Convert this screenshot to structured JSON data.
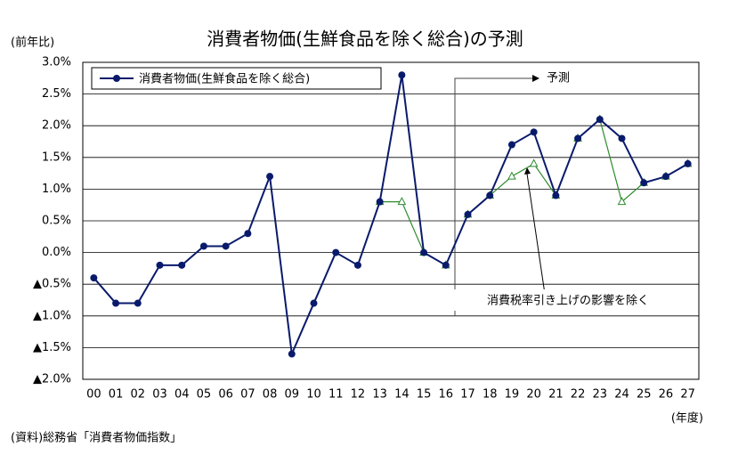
{
  "chart_data": {
    "type": "line",
    "title": "消費者物価(生鮮食品を除く総合)の予測",
    "y_unit": "(前年比)",
    "x_unit": "(年度)",
    "source": "(資料)総務省「消費者物価指数」",
    "annotations": [
      "予測",
      "消費税率引き上げの影響を除く"
    ],
    "categories": [
      "00",
      "01",
      "02",
      "03",
      "04",
      "05",
      "06",
      "07",
      "08",
      "09",
      "10",
      "11",
      "12",
      "13",
      "14",
      "15",
      "16",
      "17",
      "18",
      "19",
      "20",
      "21",
      "22",
      "23",
      "24",
      "25",
      "26",
      "27"
    ],
    "series": [
      {
        "name": "消費者物価(生鮮食品を除く総合)",
        "color": "#0a1a6b",
        "values": [
          -0.4,
          -0.8,
          -0.8,
          -0.2,
          -0.2,
          0.1,
          0.1,
          0.3,
          1.2,
          -1.6,
          -0.8,
          0.0,
          -0.2,
          0.8,
          2.8,
          0.0,
          -0.2,
          0.6,
          0.9,
          1.7,
          1.9,
          0.9,
          1.8,
          2.1,
          1.8,
          1.1,
          1.2,
          1.4
        ]
      },
      {
        "color": "#2e8b2e",
        "values": [
          null,
          null,
          null,
          null,
          null,
          null,
          null,
          null,
          null,
          null,
          null,
          null,
          null,
          0.8,
          0.8,
          0.0,
          -0.2,
          0.6,
          0.9,
          1.2,
          1.4,
          0.9,
          1.8,
          2.1,
          0.8,
          1.1,
          1.2,
          1.4
        ]
      }
    ],
    "ylim": [
      -2.0,
      3.0
    ],
    "yticks": [
      {
        "value": 3.0,
        "label": "3.0%"
      },
      {
        "value": 2.5,
        "label": "2.5%"
      },
      {
        "value": 2.0,
        "label": "2.0%"
      },
      {
        "value": 1.5,
        "label": "1.5%"
      },
      {
        "value": 1.0,
        "label": "1.0%"
      },
      {
        "value": 0.5,
        "label": "0.5%"
      },
      {
        "value": 0.0,
        "label": "0.0%"
      },
      {
        "value": -0.5,
        "label": "▲0.5%"
      },
      {
        "value": -1.0,
        "label": "▲1.0%"
      },
      {
        "value": -1.5,
        "label": "▲1.5%"
      },
      {
        "value": -2.0,
        "label": "▲2.0%"
      }
    ],
    "grid": true
  }
}
